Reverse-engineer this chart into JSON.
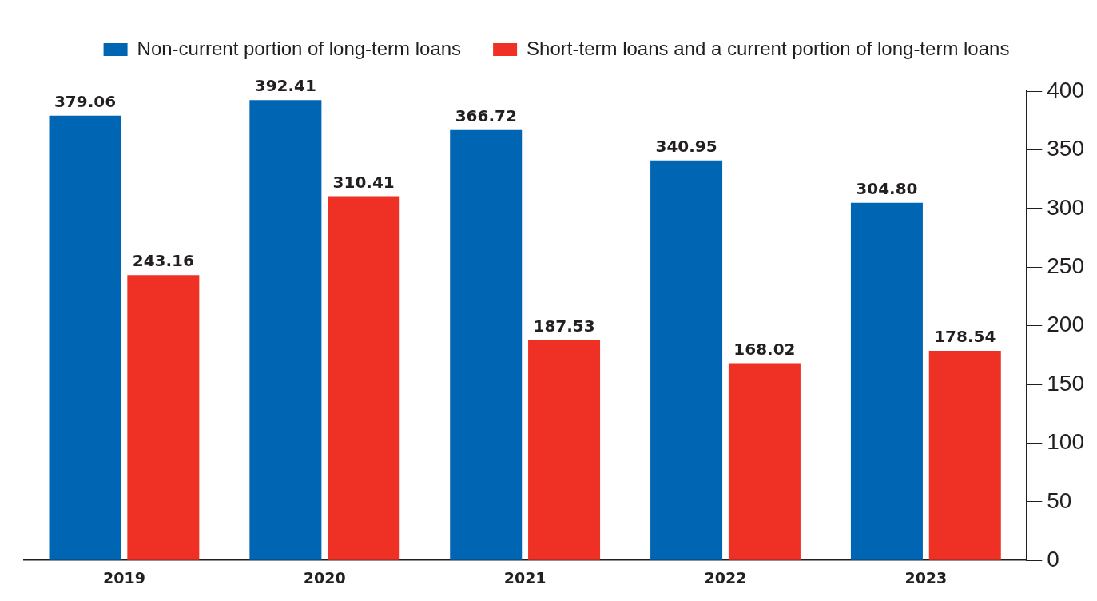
{
  "chart_data": {
    "type": "bar",
    "categories": [
      "2019",
      "2020",
      "2021",
      "2022",
      "2023"
    ],
    "series": [
      {
        "name": "Non-current portion of long-term loans",
        "color": "#0066b3",
        "values": [
          379.06,
          392.41,
          366.72,
          340.95,
          304.8
        ],
        "value_labels": [
          "379.06",
          "392.41",
          "366.72",
          "340.95",
          "304.80"
        ]
      },
      {
        "name": "Short-term loans and a current portion of long-term loans",
        "color": "#ee3124",
        "values": [
          243.16,
          310.41,
          187.53,
          168.02,
          178.54
        ],
        "value_labels": [
          "243.16",
          "310.41",
          "187.53",
          "168.02",
          "178.54"
        ]
      }
    ],
    "ylim": [
      0,
      400
    ],
    "yticks": [
      0,
      50,
      100,
      150,
      200,
      250,
      300,
      350,
      400
    ],
    "grid": false,
    "legend": "top"
  }
}
